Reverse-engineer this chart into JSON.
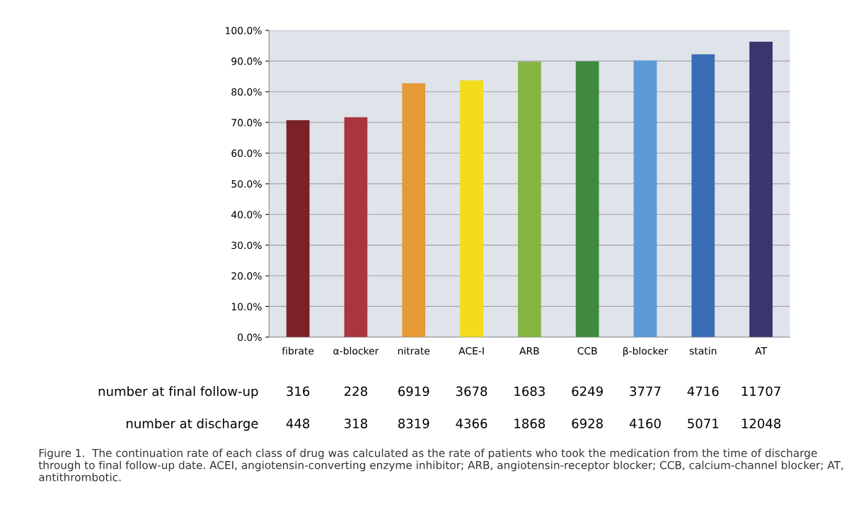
{
  "chart_data": {
    "type": "bar",
    "categories": [
      "fibrate",
      "α-blocker",
      "nitrate",
      "ACE-I",
      "ARB",
      "CCB",
      "β-blocker",
      "statin",
      "AT"
    ],
    "values": [
      70.7,
      71.7,
      82.8,
      83.7,
      89.8,
      89.9,
      90.2,
      92.2,
      96.3
    ],
    "colors": [
      "#7b2128",
      "#a9363f",
      "#e59a34",
      "#f2dc1c",
      "#86b443",
      "#3f8a3c",
      "#5c9ad6",
      "#3a6db6",
      "#3b356e"
    ],
    "ylim": [
      0,
      100
    ],
    "yticks": [
      {
        "value": 0,
        "label": "0.0%"
      },
      {
        "value": 10,
        "label": "10.0%"
      },
      {
        "value": 20,
        "label": "20.0%"
      },
      {
        "value": 30,
        "label": "30.0%"
      },
      {
        "value": 40,
        "label": "40.0%"
      },
      {
        "value": 50,
        "label": "50.0%"
      },
      {
        "value": 60,
        "label": "60.0%"
      },
      {
        "value": 70,
        "label": "70.0%"
      },
      {
        "value": 80,
        "label": "80.0%"
      },
      {
        "value": 90,
        "label": "90.0%"
      },
      {
        "value": 100,
        "label": "100.0%"
      }
    ],
    "grid": "y",
    "annotations": [
      "number at final follow-up",
      "316",
      "228",
      "6919",
      "3678",
      "1683",
      "6249",
      "3777",
      "4716",
      "11707",
      "number at discharge",
      "448",
      "318",
      "8319",
      "4366",
      "1868",
      "6928",
      "4160",
      "5071",
      "12048",
      "Figure 1.  The continuation rate of each class of drug was calculated as the rate of patients who took the medication from the time of discharge through to final follow-up date. ACEI, angiotensin-converting enzyme inhibitor; ARB, angiotensin-receptor blocker; CCB, calcium-channel blocker; AT, antithrombotic."
    ]
  }
}
